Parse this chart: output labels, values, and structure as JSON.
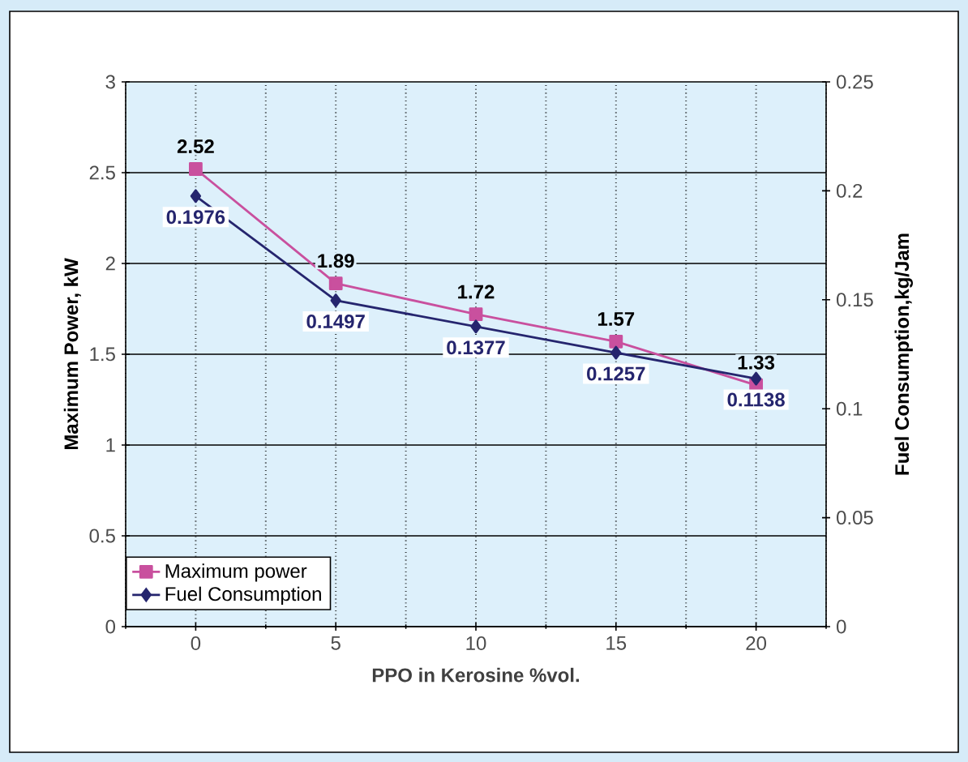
{
  "chart_data": {
    "type": "line",
    "xlabel": "PPO in Kerosine %vol.",
    "ylabel": "Maximum Power, kW",
    "y2label": "Fuel Consumption,kg/Jam",
    "categories": [
      "0",
      "5",
      "10",
      "15",
      "20"
    ],
    "series": [
      {
        "name": "Maximum power",
        "color": "#c9509e",
        "marker": "square",
        "values": [
          2.52,
          1.89,
          1.72,
          1.57,
          1.33
        ]
      },
      {
        "name": "Fuel Consumption",
        "color": "#25256e",
        "marker": "diamond",
        "axis": "y2",
        "values": [
          0.1976,
          0.1497,
          0.1377,
          0.1257,
          0.1138
        ]
      }
    ],
    "ylim": [
      0,
      3
    ],
    "yticks": [
      0,
      0.5,
      1,
      1.5,
      2,
      2.5,
      3
    ],
    "y2lim": [
      0,
      0.25
    ],
    "y2ticks": [
      0,
      0.05,
      0.1,
      0.15,
      0.2,
      0.25
    ],
    "grid": true,
    "legend": "bottom left",
    "data_labels": true,
    "line_style": "solid"
  }
}
